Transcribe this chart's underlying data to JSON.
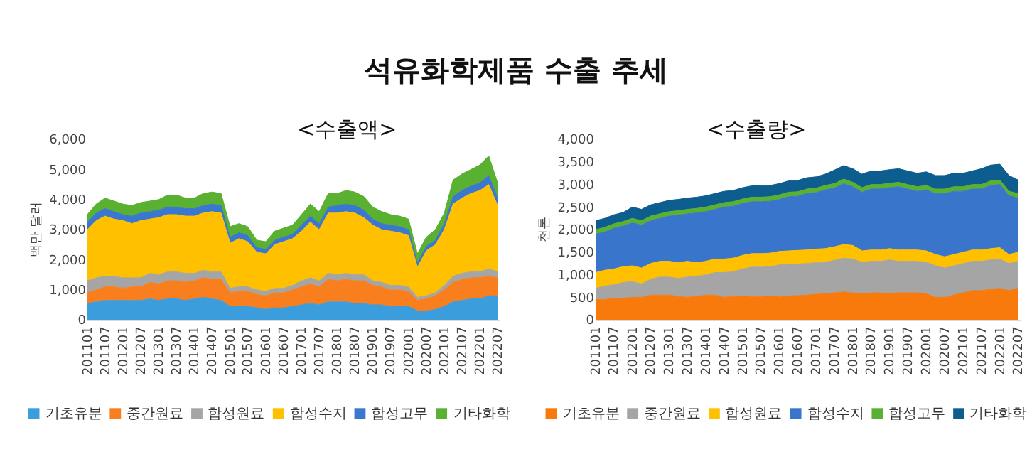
{
  "chart_data": [
    {
      "type": "area",
      "title": "석유화학제품 수출 추세",
      "subtitle": "<수출액>",
      "ylabel": "백만 달러",
      "stacked": true,
      "legend": "bottom",
      "x": [
        "2011-01",
        "2011-04",
        "2011-07",
        "2011-10",
        "2012-01",
        "2012-04",
        "2012-07",
        "2012-10",
        "2013-01",
        "2013-04",
        "2013-07",
        "2013-10",
        "2014-01",
        "2014-04",
        "2014-07",
        "2014-10",
        "2015-01",
        "2015-04",
        "2015-07",
        "2015-10",
        "2016-01",
        "2016-04",
        "2016-07",
        "2016-10",
        "2017-01",
        "2017-04",
        "2017-07",
        "2017-10",
        "2018-01",
        "2018-04",
        "2018-07",
        "2018-10",
        "2019-01",
        "2019-04",
        "2019-07",
        "2019-10",
        "2020-01",
        "2020-04",
        "2020-07",
        "2020-10",
        "2021-01",
        "2021-04",
        "2021-07",
        "2021-10",
        "2022-01",
        "2022-04",
        "2022-07"
      ],
      "xlim": [
        "2011-01",
        "2022-08"
      ],
      "xticks": [
        {
          "value": "2011-01",
          "label": "201101"
        },
        {
          "value": "2011-07",
          "label": "201107"
        },
        {
          "value": "2012-01",
          "label": "201201"
        },
        {
          "value": "2012-07",
          "label": "201207"
        },
        {
          "value": "2013-01",
          "label": "201301"
        },
        {
          "value": "2013-07",
          "label": "201307"
        },
        {
          "value": "2014-01",
          "label": "201401"
        },
        {
          "value": "2014-07",
          "label": "201407"
        },
        {
          "value": "2015-01",
          "label": "201501"
        },
        {
          "value": "2015-07",
          "label": "201507"
        },
        {
          "value": "2016-01",
          "label": "201601"
        },
        {
          "value": "2016-07",
          "label": "201607"
        },
        {
          "value": "2017-01",
          "label": "201701"
        },
        {
          "value": "2017-07",
          "label": "201707"
        },
        {
          "value": "2018-01",
          "label": "201801"
        },
        {
          "value": "2018-07",
          "label": "201807"
        },
        {
          "value": "2019-01",
          "label": "201901"
        },
        {
          "value": "2019-07",
          "label": "201907"
        },
        {
          "value": "2020-01",
          "label": "202001"
        },
        {
          "value": "2020-07",
          "label": "202007"
        },
        {
          "value": "2021-01",
          "label": "202101"
        },
        {
          "value": "2021-07",
          "label": "202107"
        },
        {
          "value": "2022-01",
          "label": "202201"
        },
        {
          "value": "2022-07",
          "label": "202207"
        }
      ],
      "ylim": [
        0,
        6000
      ],
      "yticks": [
        {
          "value": 0,
          "label": "0"
        },
        {
          "value": 1000,
          "label": "1,000"
        },
        {
          "value": 2000,
          "label": "2,000"
        },
        {
          "value": 3000,
          "label": "3,000"
        },
        {
          "value": 4000,
          "label": "4,000"
        },
        {
          "value": 5000,
          "label": "5,000"
        },
        {
          "value": 6000,
          "label": "6,000"
        }
      ],
      "series": [
        {
          "name": "기초유분",
          "color": "#3c9ddd",
          "values": [
            550,
            600,
            650,
            650,
            650,
            650,
            650,
            700,
            650,
            700,
            700,
            650,
            700,
            750,
            700,
            650,
            450,
            450,
            450,
            400,
            350,
            400,
            400,
            450,
            500,
            550,
            500,
            600,
            600,
            600,
            550,
            550,
            500,
            500,
            450,
            450,
            450,
            300,
            300,
            350,
            450,
            600,
            650,
            700,
            700,
            800,
            800
          ]
        },
        {
          "name": "중간원료",
          "color": "#f97f1e",
          "values": [
            350,
            400,
            450,
            450,
            400,
            450,
            450,
            550,
            550,
            600,
            600,
            600,
            600,
            650,
            650,
            700,
            450,
            500,
            500,
            450,
            450,
            500,
            500,
            550,
            600,
            650,
            600,
            750,
            700,
            750,
            750,
            750,
            650,
            600,
            550,
            550,
            500,
            350,
            400,
            450,
            550,
            650,
            700,
            700,
            700,
            650,
            600
          ]
        },
        {
          "name": "합성원료",
          "color": "#a5a5a5",
          "values": [
            400,
            400,
            350,
            350,
            350,
            300,
            300,
            300,
            300,
            300,
            300,
            300,
            250,
            250,
            250,
            250,
            150,
            150,
            150,
            150,
            150,
            150,
            150,
            150,
            200,
            200,
            200,
            200,
            200,
            200,
            200,
            200,
            150,
            150,
            150,
            150,
            150,
            100,
            100,
            100,
            150,
            200,
            200,
            200,
            200,
            250,
            200
          ]
        },
        {
          "name": "합성수지",
          "color": "#ffc000",
          "values": [
            1700,
            1900,
            2000,
            1900,
            1900,
            1800,
            1900,
            1800,
            1900,
            1900,
            1900,
            1900,
            1900,
            1900,
            2000,
            1950,
            1500,
            1600,
            1500,
            1250,
            1250,
            1450,
            1550,
            1550,
            1650,
            1850,
            1700,
            2000,
            2050,
            2050,
            2050,
            1900,
            1850,
            1750,
            1800,
            1750,
            1700,
            1000,
            1500,
            1600,
            1850,
            2400,
            2500,
            2600,
            2700,
            2800,
            2200
          ]
        },
        {
          "name": "합성고무",
          "color": "#3a78d0",
          "values": [
            250,
            250,
            250,
            250,
            200,
            250,
            250,
            250,
            250,
            250,
            250,
            250,
            250,
            250,
            250,
            250,
            200,
            200,
            200,
            150,
            150,
            150,
            150,
            150,
            200,
            200,
            200,
            200,
            250,
            250,
            250,
            250,
            200,
            200,
            200,
            200,
            200,
            150,
            150,
            150,
            200,
            250,
            250,
            250,
            250,
            300,
            250
          ]
        },
        {
          "name": "기타화학",
          "color": "#5ab030",
          "values": [
            250,
            300,
            350,
            350,
            350,
            350,
            350,
            350,
            350,
            400,
            400,
            350,
            350,
            400,
            400,
            400,
            350,
            300,
            300,
            250,
            250,
            300,
            300,
            300,
            350,
            400,
            400,
            450,
            400,
            450,
            450,
            450,
            400,
            400,
            350,
            350,
            350,
            300,
            300,
            350,
            350,
            550,
            550,
            550,
            600,
            650,
            500
          ]
        }
      ]
    },
    {
      "type": "area",
      "subtitle": "<수출량>",
      "ylabel": "천톤",
      "stacked": true,
      "legend": "bottom",
      "x": [
        "2011-01",
        "2011-04",
        "2011-07",
        "2011-10",
        "2012-01",
        "2012-04",
        "2012-07",
        "2012-10",
        "2013-01",
        "2013-04",
        "2013-07",
        "2013-10",
        "2014-01",
        "2014-04",
        "2014-07",
        "2014-10",
        "2015-01",
        "2015-04",
        "2015-07",
        "2015-10",
        "2016-01",
        "2016-04",
        "2016-07",
        "2016-10",
        "2017-01",
        "2017-04",
        "2017-07",
        "2017-10",
        "2018-01",
        "2018-04",
        "2018-07",
        "2018-10",
        "2019-01",
        "2019-04",
        "2019-07",
        "2019-10",
        "2020-01",
        "2020-04",
        "2020-07",
        "2020-10",
        "2021-01",
        "2021-04",
        "2021-07",
        "2021-10",
        "2022-01",
        "2022-04",
        "2022-07"
      ],
      "xlim": [
        "2011-01",
        "2022-08"
      ],
      "xticks": [
        {
          "value": "2011-01",
          "label": "201101"
        },
        {
          "value": "2011-07",
          "label": "201107"
        },
        {
          "value": "2012-01",
          "label": "201201"
        },
        {
          "value": "2012-07",
          "label": "201207"
        },
        {
          "value": "2013-01",
          "label": "201301"
        },
        {
          "value": "2013-07",
          "label": "201307"
        },
        {
          "value": "2014-01",
          "label": "201401"
        },
        {
          "value": "2014-07",
          "label": "201407"
        },
        {
          "value": "2015-01",
          "label": "201501"
        },
        {
          "value": "2015-07",
          "label": "201507"
        },
        {
          "value": "2016-01",
          "label": "201601"
        },
        {
          "value": "2016-07",
          "label": "201607"
        },
        {
          "value": "2017-01",
          "label": "201701"
        },
        {
          "value": "2017-07",
          "label": "201707"
        },
        {
          "value": "2018-01",
          "label": "201801"
        },
        {
          "value": "2018-07",
          "label": "201807"
        },
        {
          "value": "2019-01",
          "label": "201901"
        },
        {
          "value": "2019-07",
          "label": "201907"
        },
        {
          "value": "2020-01",
          "label": "202001"
        },
        {
          "value": "2020-07",
          "label": "202007"
        },
        {
          "value": "2021-01",
          "label": "202101"
        },
        {
          "value": "2021-07",
          "label": "202107"
        },
        {
          "value": "2022-01",
          "label": "202201"
        },
        {
          "value": "2022-07",
          "label": "202207"
        }
      ],
      "ylim": [
        0,
        4000
      ],
      "yticks": [
        {
          "value": 0,
          "label": "0"
        },
        {
          "value": 500,
          "label": "500"
        },
        {
          "value": 1000,
          "label": "1,000"
        },
        {
          "value": 1500,
          "label": "1,500"
        },
        {
          "value": 2000,
          "label": "2,000"
        },
        {
          "value": 2500,
          "label": "2,500"
        },
        {
          "value": 3000,
          "label": "3,000"
        },
        {
          "value": 3500,
          "label": "3,500"
        },
        {
          "value": 4000,
          "label": "4,000"
        }
      ],
      "series": [
        {
          "name": "기초유분",
          "color": "#f97a0c",
          "values": [
            450,
            450,
            480,
            480,
            500,
            500,
            550,
            550,
            550,
            520,
            500,
            520,
            550,
            550,
            500,
            520,
            530,
            520,
            520,
            530,
            520,
            530,
            540,
            550,
            570,
            580,
            600,
            620,
            600,
            580,
            600,
            600,
            580,
            600,
            600,
            600,
            580,
            500,
            500,
            550,
            600,
            650,
            650,
            680,
            700,
            650,
            700
          ]
        },
        {
          "name": "중간원료",
          "color": "#a5a5a5",
          "values": [
            250,
            300,
            300,
            350,
            350,
            300,
            350,
            400,
            400,
            400,
            450,
            450,
            450,
            500,
            550,
            550,
            600,
            650,
            650,
            650,
            700,
            700,
            700,
            700,
            700,
            700,
            720,
            750,
            750,
            700,
            700,
            700,
            750,
            700,
            700,
            700,
            700,
            700,
            650,
            650,
            650,
            650,
            650,
            650,
            650,
            600,
            600
          ]
        },
        {
          "name": "합성원료",
          "color": "#ffc000",
          "values": [
            350,
            350,
            350,
            350,
            350,
            350,
            350,
            350,
            350,
            350,
            350,
            300,
            300,
            300,
            300,
            300,
            300,
            300,
            300,
            300,
            300,
            300,
            300,
            300,
            300,
            300,
            300,
            300,
            300,
            250,
            250,
            250,
            250,
            250,
            250,
            250,
            250,
            250,
            250,
            250,
            250,
            250,
            250,
            250,
            250,
            200,
            200
          ]
        },
        {
          "name": "합성수지",
          "color": "#3a75cc",
          "values": [
            850,
            850,
            900,
            900,
            950,
            950,
            950,
            950,
            1000,
            1050,
            1050,
            1100,
            1100,
            1100,
            1150,
            1150,
            1150,
            1150,
            1150,
            1150,
            1150,
            1200,
            1200,
            1250,
            1250,
            1300,
            1300,
            1350,
            1300,
            1300,
            1350,
            1350,
            1350,
            1400,
            1350,
            1300,
            1350,
            1350,
            1400,
            1400,
            1350,
            1350,
            1350,
            1400,
            1400,
            1300,
            1200
          ]
        },
        {
          "name": "합성고무",
          "color": "#5ab030",
          "values": [
            100,
            100,
            100,
            100,
            100,
            100,
            100,
            100,
            100,
            100,
            100,
            100,
            100,
            100,
            100,
            100,
            100,
            100,
            100,
            100,
            100,
            100,
            100,
            100,
            100,
            100,
            100,
            100,
            100,
            100,
            100,
            100,
            100,
            100,
            100,
            100,
            100,
            100,
            100,
            100,
            100,
            100,
            100,
            100,
            100,
            100,
            100
          ]
        },
        {
          "name": "기타화학",
          "color": "#0d5e8f",
          "values": [
            200,
            200,
            200,
            200,
            250,
            250,
            250,
            250,
            250,
            250,
            250,
            250,
            250,
            250,
            250,
            250,
            250,
            250,
            250,
            250,
            250,
            250,
            250,
            250,
            250,
            250,
            300,
            300,
            300,
            300,
            300,
            300,
            300,
            300,
            300,
            300,
            300,
            300,
            300,
            300,
            300,
            300,
            350,
            350,
            350,
            350,
            300
          ]
        }
      ]
    }
  ]
}
